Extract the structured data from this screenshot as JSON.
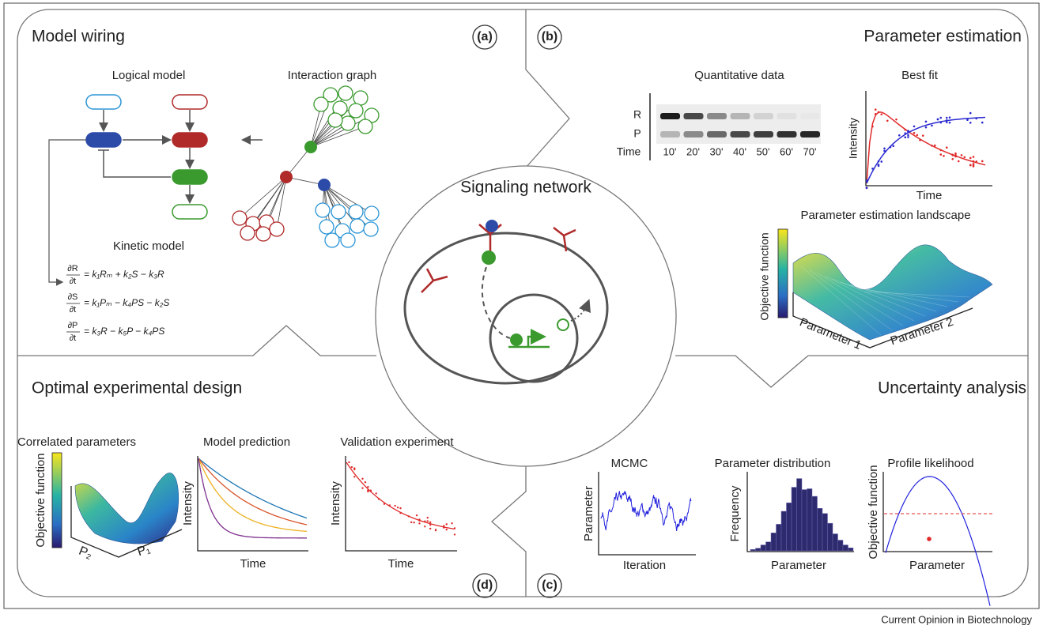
{
  "center": "Signaling network",
  "footer": "Current Opinion in Biotechnology",
  "panel_a": {
    "label": "(a)",
    "title": "Model wiring",
    "logical_model": "Logical model",
    "interaction_graph": "Interaction graph",
    "kinetic_model": "Kinetic model",
    "equations": [
      {
        "num": "∂R",
        "den": "∂t",
        "rhs": "= k₁Rₘ + k₂S − k₃R"
      },
      {
        "num": "∂S",
        "den": "∂t",
        "rhs": "= k₁Pₘ − k₄PS − k₂S"
      },
      {
        "num": "∂P",
        "den": "∂t",
        "rhs": "= k₃R − k₅P − k₄PS"
      }
    ]
  },
  "panel_b": {
    "label": "(b)",
    "title": "Parameter estimation",
    "quantitative_data": "Quantitative data",
    "rows": [
      "R",
      "P",
      "Time"
    ],
    "times": [
      "10'",
      "20'",
      "30'",
      "40'",
      "50'",
      "60'",
      "70'"
    ],
    "best_fit": "Best fit",
    "best_fit_y": "Intensity",
    "best_fit_x": "Time",
    "landscape": "Parameter estimation landscape",
    "landscape_z": "Objective function",
    "landscape_x": "Parameter 1",
    "landscape_y": "Parameter 2"
  },
  "panel_d": {
    "label": "(d)",
    "title": "Optimal experimental design",
    "correlated": "Correlated parameters",
    "correlated_z": "Objective function",
    "correlated_p2": "P₂",
    "correlated_p1": "P₁",
    "prediction": "Model prediction",
    "prediction_y": "Intensity",
    "prediction_x": "Time",
    "validation": "Validation experiment",
    "validation_y": "Intensity",
    "validation_x": "Time"
  },
  "panel_c": {
    "label": "(c)",
    "title": "Uncertainty analysis",
    "mcmc": "MCMC",
    "mcmc_y": "Parameter",
    "mcmc_x": "Iteration",
    "distribution": "Parameter distribution",
    "distribution_y": "Frequency",
    "distribution_x": "Parameter",
    "profile": "Profile likelihood",
    "profile_y": "Objective function",
    "profile_x": "Parameter"
  }
}
